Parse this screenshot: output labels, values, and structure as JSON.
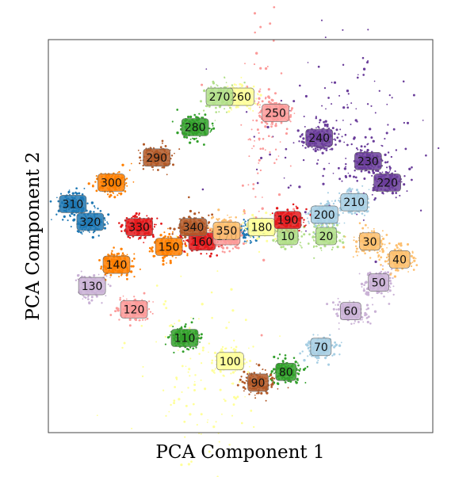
{
  "chart_data": {
    "type": "scatter",
    "title": "",
    "xlabel": "PCA Component 1",
    "ylabel": "PCA Component 2",
    "xlim": [
      -1.1,
      1.1
    ],
    "ylim": [
      -1.1,
      1.1
    ],
    "grid": false,
    "legend": "none",
    "x_ticks_shown": false,
    "y_ticks_shown": false,
    "point_clouds": [
      {
        "x": 0.03,
        "y": 0.02,
        "rx": 0.04,
        "ry": 0.03,
        "n": 70,
        "color": "#1f78b4"
      },
      {
        "x": -0.08,
        "y": 0.05,
        "rx": 0.05,
        "ry": 0.04,
        "n": 50,
        "color": "#fdbf6f"
      },
      {
        "x": 0.55,
        "y": 0.55,
        "rx": 0.22,
        "ry": 0.25,
        "n": 160,
        "color": "#6a3d9a"
      },
      {
        "x": -0.25,
        "y": -0.75,
        "rx": 0.2,
        "ry": 0.25,
        "n": 120,
        "color": "#ffff99"
      },
      {
        "x": 0.1,
        "y": 0.55,
        "rx": 0.08,
        "ry": 0.35,
        "n": 90,
        "color": "#fb9a99"
      }
    ],
    "clusters": [
      {
        "label": "10",
        "x": 0.27,
        "y": 0.0,
        "color": "#b2df8a"
      },
      {
        "label": "20",
        "x": 0.49,
        "y": 0.0,
        "color": "#b2df8a"
      },
      {
        "label": "30",
        "x": 0.74,
        "y": -0.03,
        "color": "#fdbf6f"
      },
      {
        "label": "40",
        "x": 0.91,
        "y": -0.13,
        "color": "#fdbf6f"
      },
      {
        "label": "50",
        "x": 0.79,
        "y": -0.26,
        "color": "#cab2d6"
      },
      {
        "label": "60",
        "x": 0.63,
        "y": -0.42,
        "color": "#cab2d6"
      },
      {
        "label": "70",
        "x": 0.46,
        "y": -0.62,
        "color": "#a6cee3"
      },
      {
        "label": "80",
        "x": 0.26,
        "y": -0.76,
        "color": "#33a02c"
      },
      {
        "label": "90",
        "x": 0.1,
        "y": -0.82,
        "color": "#b15928"
      },
      {
        "label": "100",
        "x": -0.06,
        "y": -0.7,
        "color": "#ffff99"
      },
      {
        "label": "110",
        "x": -0.32,
        "y": -0.57,
        "color": "#33a02c"
      },
      {
        "label": "120",
        "x": -0.61,
        "y": -0.41,
        "color": "#fb9a99"
      },
      {
        "label": "130",
        "x": -0.85,
        "y": -0.28,
        "color": "#cab2d6"
      },
      {
        "label": "140",
        "x": -0.71,
        "y": -0.16,
        "color": "#ff7f00"
      },
      {
        "label": "150",
        "x": -0.41,
        "y": -0.06,
        "color": "#ff7f00"
      },
      {
        "label": "160",
        "x": -0.22,
        "y": -0.03,
        "color": "#e31a1c"
      },
      {
        "label": "170",
        "x": -0.08,
        "y": 0.0,
        "color": "#fb9a99"
      },
      {
        "label": "180",
        "x": 0.12,
        "y": 0.05,
        "color": "#ffff99"
      },
      {
        "label": "190",
        "x": 0.27,
        "y": 0.09,
        "color": "#e31a1c"
      },
      {
        "label": "200",
        "x": 0.48,
        "y": 0.12,
        "color": "#a6cee3"
      },
      {
        "label": "210",
        "x": 0.65,
        "y": 0.19,
        "color": "#a6cee3"
      },
      {
        "label": "220",
        "x": 0.84,
        "y": 0.3,
        "color": "#6a3d9a"
      },
      {
        "label": "230",
        "x": 0.73,
        "y": 0.42,
        "color": "#6a3d9a"
      },
      {
        "label": "240",
        "x": 0.45,
        "y": 0.55,
        "color": "#6a3d9a"
      },
      {
        "label": "250",
        "x": 0.2,
        "y": 0.69,
        "color": "#fb9a99"
      },
      {
        "label": "260",
        "x": -0.0,
        "y": 0.78,
        "color": "#ffff99"
      },
      {
        "label": "270",
        "x": -0.12,
        "y": 0.78,
        "color": "#b2df8a"
      },
      {
        "label": "280",
        "x": -0.26,
        "y": 0.61,
        "color": "#33a02c"
      },
      {
        "label": "290",
        "x": -0.48,
        "y": 0.44,
        "color": "#b15928"
      },
      {
        "label": "300",
        "x": -0.74,
        "y": 0.3,
        "color": "#ff7f00"
      },
      {
        "label": "310",
        "x": -0.96,
        "y": 0.18,
        "color": "#1f78b4"
      },
      {
        "label": "320",
        "x": -0.86,
        "y": 0.08,
        "color": "#1f78b4"
      },
      {
        "label": "330",
        "x": -0.58,
        "y": 0.05,
        "color": "#e31a1c"
      },
      {
        "label": "340",
        "x": -0.27,
        "y": 0.05,
        "color": "#b15928"
      },
      {
        "label": "350",
        "x": -0.08,
        "y": 0.03,
        "color": "#fdbf6f"
      }
    ]
  }
}
